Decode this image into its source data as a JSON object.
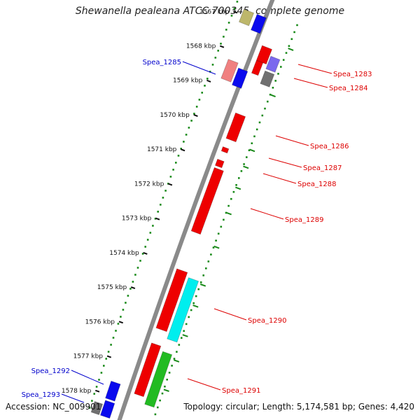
{
  "title": "Shewanella pealeana ATCC 700345, complete genome",
  "footer": {
    "accession": "Accession: NC_009901",
    "topology": "Topology: circular; Length: 5,174,581 bp; Genes: 4,420"
  },
  "kbp_labels": [
    "1567 kbp",
    "1568 kbp",
    "1569 kbp",
    "1570 kbp",
    "1571 kbp",
    "1572 kbp",
    "1573 kbp",
    "1574 kbp",
    "1575 kbp",
    "1576 kbp",
    "1577 kbp",
    "1578 kbp"
  ],
  "gene_labels": [
    {
      "name": "Spea_1283",
      "strand": "forward"
    },
    {
      "name": "Spea_1284",
      "strand": "forward"
    },
    {
      "name": "Spea_1285",
      "strand": "reverse"
    },
    {
      "name": "Spea_1286",
      "strand": "forward"
    },
    {
      "name": "Spea_1287",
      "strand": "forward"
    },
    {
      "name": "Spea_1288",
      "strand": "forward"
    },
    {
      "name": "Spea_1289",
      "strand": "forward"
    },
    {
      "name": "Spea_1290",
      "strand": "forward"
    },
    {
      "name": "Spea_1291",
      "strand": "forward"
    },
    {
      "name": "Spea_1292",
      "strand": "reverse"
    },
    {
      "name": "Spea_1293",
      "strand": "reverse"
    }
  ],
  "colors": {
    "forward_label": "#dd0000",
    "reverse_label": "#0000cc",
    "backbone": "#8a8a8a",
    "ruler_dots": "#1a8a1a",
    "red_gene": "#ee0000",
    "blue_gene": "#0a0aee",
    "cyan_gene": "#00eeee",
    "green_gene": "#22bb22",
    "gray_gene": "#707070",
    "khaki_gene": "#bdb76b",
    "pink_gene": "#f08080",
    "purple_gene": "#7b68ee"
  }
}
